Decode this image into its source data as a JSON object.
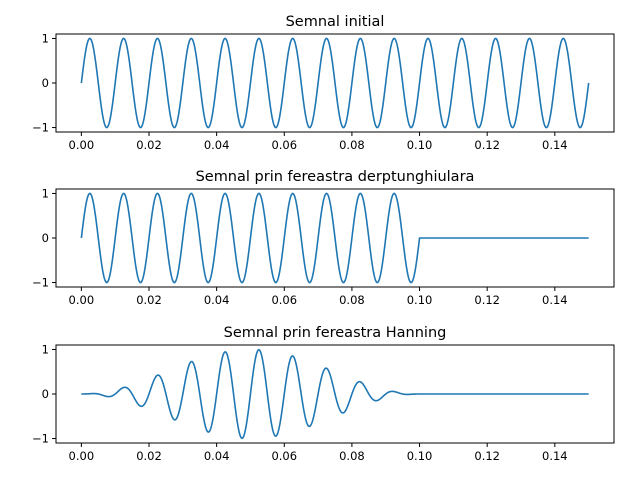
{
  "colors": {
    "line": "#1f77b4",
    "axes": "#000000",
    "background": "#ffffff"
  },
  "chart_data": [
    {
      "type": "line",
      "title": "Semnal initial",
      "xlabel": "",
      "ylabel": "",
      "xlim": [
        0,
        0.15
      ],
      "ylim": [
        -1.1,
        1.1
      ],
      "xticks": [
        "0.00",
        "0.02",
        "0.04",
        "0.06",
        "0.08",
        "0.10",
        "0.12",
        "0.14"
      ],
      "yticks": [
        "1",
        "0",
        "−1"
      ],
      "grid": false,
      "series": [
        {
          "function": "sin(2*pi*100*t)",
          "frequency_hz": 100,
          "amplitude": 1,
          "t_start": 0,
          "t_end": 0.15,
          "window": "none"
        }
      ]
    },
    {
      "type": "line",
      "title": "Semnal prin fereastra derptunghiulara",
      "xlabel": "",
      "ylabel": "",
      "xlim": [
        0,
        0.15
      ],
      "ylim": [
        -1.1,
        1.1
      ],
      "xticks": [
        "0.00",
        "0.02",
        "0.04",
        "0.06",
        "0.08",
        "0.10",
        "0.12",
        "0.14"
      ],
      "yticks": [
        "1",
        "0",
        "−1"
      ],
      "grid": false,
      "series": [
        {
          "function": "sin(2*pi*100*t) for t<0.1, else 0",
          "frequency_hz": 100,
          "amplitude": 1,
          "t_start": 0,
          "t_end": 0.15,
          "window": "rectangular",
          "window_length": 0.1
        }
      ]
    },
    {
      "type": "line",
      "title": "Semnal prin fereastra Hanning",
      "xlabel": "",
      "ylabel": "",
      "xlim": [
        0,
        0.15
      ],
      "ylim": [
        -1.1,
        1.1
      ],
      "xticks": [
        "0.00",
        "0.02",
        "0.04",
        "0.06",
        "0.08",
        "0.10",
        "0.12",
        "0.14"
      ],
      "yticks": [
        "1",
        "0",
        "−1"
      ],
      "grid": false,
      "series": [
        {
          "function": "sin(2*pi*100*t) * hanning window over [0, 0.1], else 0",
          "frequency_hz": 100,
          "amplitude": 1,
          "t_start": 0,
          "t_end": 0.15,
          "window": "hanning",
          "window_length": 0.1
        }
      ]
    }
  ]
}
